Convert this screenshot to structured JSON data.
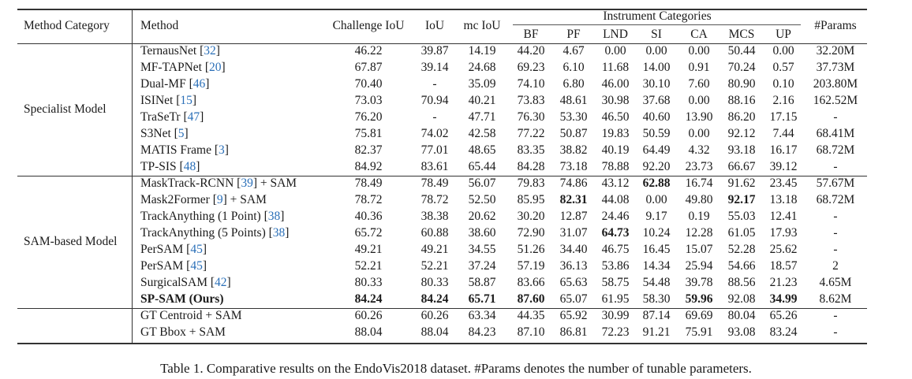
{
  "table": {
    "headers": {
      "method_category": "Method Category",
      "method": "Method",
      "challenge_iou": "Challenge IoU",
      "iou": "IoU",
      "mc_iou": "mc IoU",
      "instrument_categories": "Instrument Categories",
      "instruments": [
        "BF",
        "PF",
        "LND",
        "SI",
        "CA",
        "MCS",
        "UP"
      ],
      "params": "#Params"
    },
    "groups": [
      {
        "category": "Specialist Model",
        "rows": [
          {
            "method": "TernausNet",
            "cite": "32",
            "challenge_iou": "46.22",
            "iou": "39.87",
            "mc_iou": "14.19",
            "inst": [
              "44.20",
              "4.67",
              "0.00",
              "0.00",
              "0.00",
              "50.44",
              "0.00"
            ],
            "params": "32.20M"
          },
          {
            "method": "MF-TAPNet",
            "cite": "20",
            "challenge_iou": "67.87",
            "iou": "39.14",
            "mc_iou": "24.68",
            "inst": [
              "69.23",
              "6.10",
              "11.68",
              "14.00",
              "0.91",
              "70.24",
              "0.57"
            ],
            "params": "37.73M"
          },
          {
            "method": "Dual-MF",
            "cite": "46",
            "challenge_iou": "70.40",
            "iou": "-",
            "mc_iou": "35.09",
            "inst": [
              "74.10",
              "6.80",
              "46.00",
              "30.10",
              "7.60",
              "80.90",
              "0.10"
            ],
            "params": "203.80M"
          },
          {
            "method": "ISINet",
            "cite": "15",
            "challenge_iou": "73.03",
            "iou": "70.94",
            "mc_iou": "40.21",
            "inst": [
              "73.83",
              "48.61",
              "30.98",
              "37.68",
              "0.00",
              "88.16",
              "2.16"
            ],
            "params": "162.52M"
          },
          {
            "method": "TraSeTr",
            "cite": "47",
            "challenge_iou": "76.20",
            "iou": "-",
            "mc_iou": "47.71",
            "inst": [
              "76.30",
              "53.30",
              "46.50",
              "40.60",
              "13.90",
              "86.20",
              "17.15"
            ],
            "params": "-"
          },
          {
            "method": "S3Net",
            "cite": "5",
            "challenge_iou": "75.81",
            "iou": "74.02",
            "mc_iou": "42.58",
            "inst": [
              "77.22",
              "50.87",
              "19.83",
              "50.59",
              "0.00",
              "92.12",
              "7.44"
            ],
            "params": "68.41M"
          },
          {
            "method": "MATIS Frame",
            "cite": "3",
            "challenge_iou": "82.37",
            "iou": "77.01",
            "mc_iou": "48.65",
            "inst": [
              "83.35",
              "38.82",
              "40.19",
              "64.49",
              "4.32",
              "93.18",
              "16.17"
            ],
            "params": "68.72M"
          },
          {
            "method": "TP-SIS",
            "cite": "48",
            "challenge_iou": "84.92",
            "iou": "83.61",
            "mc_iou": "65.44",
            "inst": [
              "84.28",
              "73.18",
              "78.88",
              "92.20",
              "23.73",
              "66.67",
              "39.12"
            ],
            "params": "-"
          }
        ]
      },
      {
        "category": "SAM-based Model",
        "rows": [
          {
            "method": "MaskTrack-RCNN",
            "cite": "39",
            "suffix": " + SAM",
            "challenge_iou": "78.49",
            "iou": "78.49",
            "mc_iou": "56.07",
            "inst": [
              "79.83",
              "74.86",
              "43.12",
              "62.88",
              "16.74",
              "91.62",
              "23.45"
            ],
            "params": "57.67M",
            "bold_cols": [
              "SI"
            ]
          },
          {
            "method": "Mask2Former",
            "cite": "9",
            "suffix": " + SAM",
            "challenge_iou": "78.72",
            "iou": "78.72",
            "mc_iou": "52.50",
            "inst": [
              "85.95",
              "82.31",
              "44.08",
              "0.00",
              "49.80",
              "92.17",
              "13.18"
            ],
            "params": "68.72M",
            "bold_cols": [
              "PF",
              "MCS"
            ]
          },
          {
            "method": "TrackAnything (1 Point)",
            "cite": "38",
            "challenge_iou": "40.36",
            "iou": "38.38",
            "mc_iou": "20.62",
            "inst": [
              "30.20",
              "12.87",
              "24.46",
              "9.17",
              "0.19",
              "55.03",
              "12.41"
            ],
            "params": "-"
          },
          {
            "method": "TrackAnything (5 Points)",
            "cite": "38",
            "challenge_iou": "65.72",
            "iou": "60.88",
            "mc_iou": "38.60",
            "inst": [
              "72.90",
              "31.07",
              "64.73",
              "10.24",
              "12.28",
              "61.05",
              "17.93"
            ],
            "params": "-",
            "bold_cols": [
              "LND"
            ]
          },
          {
            "method": "PerSAM",
            "cite": "45",
            "challenge_iou": "49.21",
            "iou": "49.21",
            "mc_iou": "34.55",
            "inst": [
              "51.26",
              "34.40",
              "46.75",
              "16.45",
              "15.07",
              "52.28",
              "25.62"
            ],
            "params": "-"
          },
          {
            "method": "PerSAM",
            "cite": "45",
            "challenge_iou": "52.21",
            "iou": "52.21",
            "mc_iou": "37.24",
            "inst": [
              "57.19",
              "36.13",
              "53.86",
              "14.34",
              "25.94",
              "54.66",
              "18.57"
            ],
            "params": "2"
          },
          {
            "method": "SurgicalSAM",
            "cite": "42",
            "challenge_iou": "80.33",
            "iou": "80.33",
            "mc_iou": "58.87",
            "inst": [
              "83.66",
              "65.63",
              "58.75",
              "54.48",
              "39.78",
              "88.56",
              "21.23"
            ],
            "params": "4.65M"
          },
          {
            "method": "SP-SAM (Ours)",
            "challenge_iou": "84.24",
            "iou": "84.24",
            "mc_iou": "65.71",
            "inst": [
              "87.60",
              "65.07",
              "61.95",
              "58.30",
              "59.96",
              "92.08",
              "34.99"
            ],
            "params": "8.62M",
            "bold_method": true,
            "bold_cols": [
              "challenge_iou",
              "iou",
              "mc_iou",
              "BF",
              "CA",
              "UP"
            ]
          }
        ]
      },
      {
        "category": "",
        "rows": [
          {
            "method": "GT Centroid + SAM",
            "challenge_iou": "60.26",
            "iou": "60.26",
            "mc_iou": "63.34",
            "inst": [
              "44.35",
              "65.92",
              "30.99",
              "87.14",
              "69.69",
              "80.04",
              "65.26"
            ],
            "params": "-"
          },
          {
            "method": "GT Bbox + SAM",
            "challenge_iou": "88.04",
            "iou": "88.04",
            "mc_iou": "84.23",
            "inst": [
              "87.10",
              "86.81",
              "72.23",
              "91.21",
              "75.91",
              "93.08",
              "83.24"
            ],
            "params": "-"
          }
        ]
      }
    ]
  },
  "caption": "Table 1. Comparative results on the EndoVis2018 dataset. #Params denotes the number of tunable parameters.",
  "colors": {
    "citation": "#2a6fb8",
    "text": "#1a1a1a"
  }
}
